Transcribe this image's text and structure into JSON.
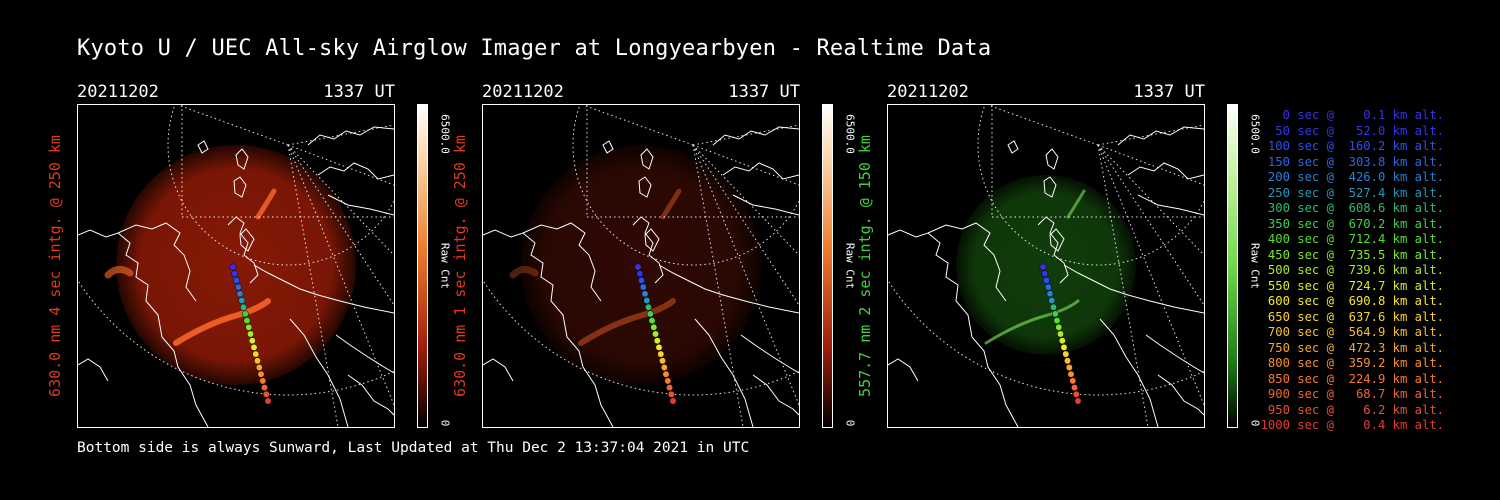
{
  "title": "Kyoto U / UEC All-sky Airglow Imager at Longyearbyen - Realtime Data",
  "footer": "Bottom side is always Sunward, Last Updated at Thu Dec  2 13:37:04 2021 in UTC",
  "panels": [
    {
      "date": "20211202",
      "time": "1337 UT",
      "side_label": "630.0 nm 4 sec intg. @ 250 km",
      "side_color": "#e03a1c",
      "cbar_max": "6500.0",
      "cbar_min": "0",
      "cbar_unit": "Raw Cnt",
      "emission": "red",
      "brightness": 1.0
    },
    {
      "date": "20211202",
      "time": "1337 UT",
      "side_label": "630.0 nm 1 sec intg. @ 250 km",
      "side_color": "#e03a1c",
      "cbar_max": "6500.0",
      "cbar_min": "0",
      "cbar_unit": "Raw Cnt",
      "emission": "red",
      "brightness": 0.35
    },
    {
      "date": "20211202",
      "time": "1337 UT",
      "side_label": "557.7 nm 2 sec intg. @ 150 km",
      "side_color": "#3fd23c",
      "cbar_max": "6500.0",
      "cbar_min": "0",
      "cbar_unit": "Raw Cnt",
      "emission": "green",
      "brightness": 0.6
    }
  ],
  "legend": [
    {
      "text": "   0 sec @    0.1 km alt.",
      "color": "#3a2fe8"
    },
    {
      "text": "  50 sec @   52.0 km alt.",
      "color": "#2f36ee"
    },
    {
      "text": " 100 sec @  160.2 km alt.",
      "color": "#2b4fee"
    },
    {
      "text": " 150 sec @  303.8 km alt.",
      "color": "#2b66e6"
    },
    {
      "text": " 200 sec @  426.0 km alt.",
      "color": "#2a7fd6"
    },
    {
      "text": " 250 sec @  527.4 km alt.",
      "color": "#2a95b8"
    },
    {
      "text": " 300 sec @  608.6 km alt.",
      "color": "#2fb77c"
    },
    {
      "text": " 350 sec @  670.2 km alt.",
      "color": "#3ed04c"
    },
    {
      "text": " 400 sec @  712.4 km alt.",
      "color": "#55df2e"
    },
    {
      "text": " 450 sec @  735.5 km alt.",
      "color": "#7fe82a"
    },
    {
      "text": " 500 sec @  739.6 km alt.",
      "color": "#aaea2a"
    },
    {
      "text": " 550 sec @  724.7 km alt.",
      "color": "#d6ec2b"
    },
    {
      "text": " 600 sec @  690.8 km alt.",
      "color": "#f5e82c"
    },
    {
      "text": " 650 sec @  637.6 km alt.",
      "color": "#f8d42c"
    },
    {
      "text": " 700 sec @  564.9 km alt.",
      "color": "#f9be2d"
    },
    {
      "text": " 750 sec @  472.3 km alt.",
      "color": "#f9a62e"
    },
    {
      "text": " 800 sec @  359.2 km alt.",
      "color": "#f88f2f"
    },
    {
      "text": " 850 sec @  224.9 km alt.",
      "color": "#f57a30"
    },
    {
      "text": " 900 sec @   68.7 km alt.",
      "color": "#f06431"
    },
    {
      "text": " 950 sec @    6.2 km alt.",
      "color": "#ea5032"
    },
    {
      "text": "1000 sec @    0.4 km alt.",
      "color": "#e33d33"
    }
  ]
}
